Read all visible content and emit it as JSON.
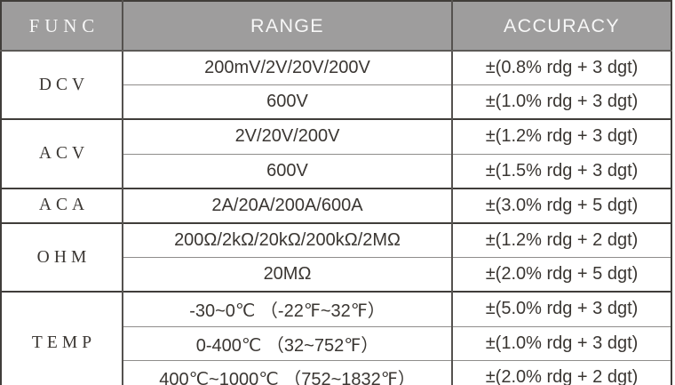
{
  "chart_data": {
    "type": "table",
    "title": "Multimeter function / range / accuracy specifications",
    "columns": [
      "FUNC",
      "RANGE",
      "ACCURACY"
    ],
    "groups": [
      {
        "func": "DCV",
        "rows": [
          {
            "range": "200mV/2V/20V/200V",
            "accuracy": "±(0.8% rdg + 3 dgt)"
          },
          {
            "range": "600V",
            "accuracy": "±(1.0% rdg + 3 dgt)"
          }
        ]
      },
      {
        "func": "ACV",
        "rows": [
          {
            "range": "2V/20V/200V",
            "accuracy": "±(1.2% rdg + 3 dgt)"
          },
          {
            "range": "600V",
            "accuracy": "±(1.5% rdg + 3 dgt)"
          }
        ]
      },
      {
        "func": "ACA",
        "rows": [
          {
            "range": "2A/20A/200A/600A",
            "accuracy": "±(3.0% rdg + 5 dgt)"
          }
        ]
      },
      {
        "func": "OHM",
        "rows": [
          {
            "range": "200Ω/2kΩ/20kΩ/200kΩ/2MΩ",
            "accuracy": "±(1.2% rdg + 2 dgt)"
          },
          {
            "range": "20MΩ",
            "accuracy": "±(2.0% rdg + 5 dgt)"
          }
        ]
      },
      {
        "func": "TEMP",
        "rows": [
          {
            "range": "-30~0℃ （-22℉~32℉）",
            "accuracy": "±(5.0% rdg + 3 dgt)"
          },
          {
            "range": "0-400℃ （32~752℉）",
            "accuracy": "±(1.0% rdg + 3 dgt)"
          },
          {
            "range": "400℃~1000℃ （752~1832℉）",
            "accuracy": "±(2.0% rdg + 2 dgt)"
          }
        ]
      }
    ],
    "layout": {
      "grid": "on",
      "header_row": true,
      "func_cells_row_spanned": true
    }
  },
  "colors": {
    "header_bg": "#9e9d9d",
    "header_text": "#f7f7f7",
    "body_text": "#3a3632",
    "border_dark": "#403d3a"
  }
}
